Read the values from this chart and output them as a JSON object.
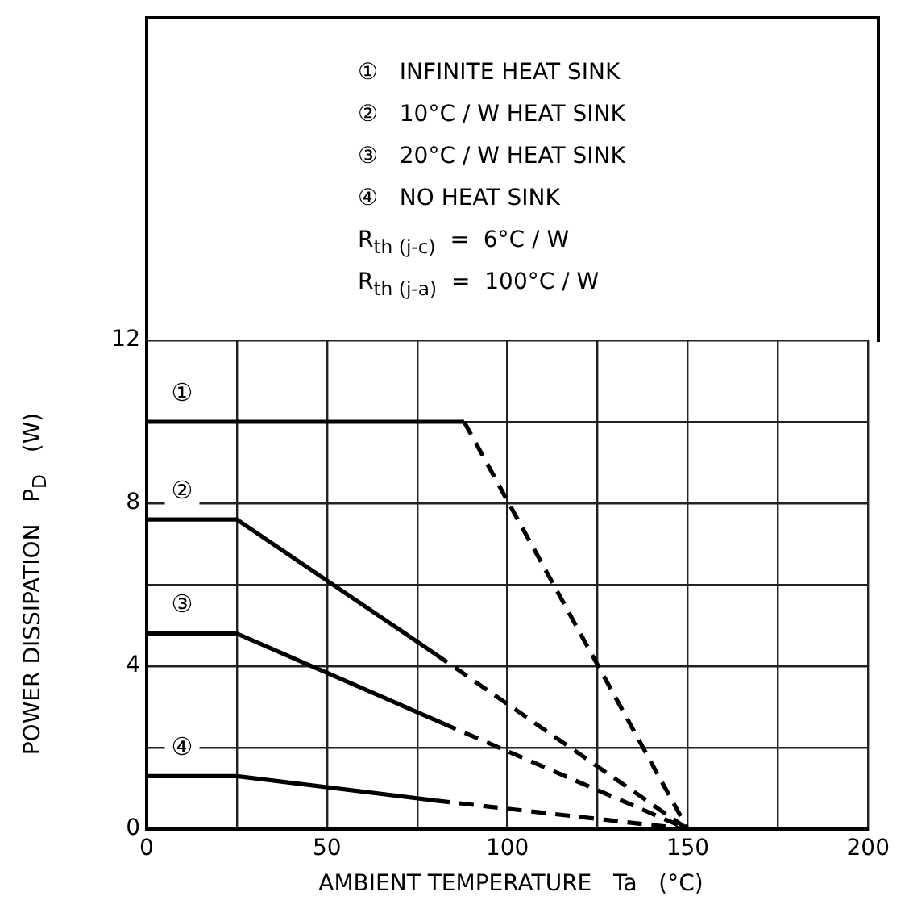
{
  "chart_data": {
    "type": "line",
    "xlabel": "AMBIENT TEMPERATURE   Ta   (°C)",
    "ylabel": "POWER DISSIPATION   P$_{D}$   (W)",
    "annotations": [
      "①   INFINITE HEAT SINK",
      "②   10°C / W HEAT SINK",
      "③   20°C / W HEAT SINK",
      "④   NO HEAT SINK",
      "R$_{th (j-c)}$  =  6°C / W",
      "R$_{th (j-a)}$  =  100°C / W"
    ],
    "xlim": [
      0,
      200
    ],
    "xticks": [
      0,
      {
        "value": 25,
        "label": null
      },
      50,
      {
        "value": 75,
        "label": null
      },
      100,
      {
        "value": 125,
        "label": null
      },
      150,
      {
        "value": 175,
        "label": null
      },
      200
    ],
    "ylim": [
      0,
      12
    ],
    "yticks": [
      0,
      {
        "value": 2,
        "label": null
      },
      4,
      {
        "value": 6,
        "label": null
      },
      8,
      {
        "value": 10,
        "label": null
      },
      12
    ],
    "grid": true,
    "legend": false,
    "marker": "none",
    "series": [
      {
        "name": "①",
        "color": "#000000",
        "line_style": "solid",
        "x": [
          0,
          88
        ],
        "values": [
          10,
          10
        ]
      },
      {
        "color": "#000000",
        "line_style": "dashed",
        "x": [
          88,
          150
        ],
        "values": [
          10,
          0
        ]
      },
      {
        "name": "②",
        "color": "#000000",
        "line_style": "solid",
        "x": [
          0,
          25,
          80
        ],
        "values": [
          7.6,
          7.6,
          4.3
        ]
      },
      {
        "color": "#000000",
        "line_style": "dashed",
        "x": [
          80,
          150
        ],
        "values": [
          4.3,
          0
        ]
      },
      {
        "name": "③",
        "color": "#000000",
        "line_style": "solid",
        "x": [
          0,
          25,
          82
        ],
        "values": [
          4.8,
          4.8,
          2.6
        ]
      },
      {
        "color": "#000000",
        "line_style": "dashed",
        "x": [
          82,
          150
        ],
        "values": [
          2.6,
          0
        ]
      },
      {
        "name": "④",
        "color": "#000000",
        "line_style": "solid",
        "x": [
          0,
          25,
          80
        ],
        "values": [
          1.3,
          1.3,
          0.7
        ]
      },
      {
        "color": "#000000",
        "line_style": "dashed",
        "x": [
          80,
          150
        ],
        "values": [
          0.7,
          0
        ]
      }
    ]
  }
}
